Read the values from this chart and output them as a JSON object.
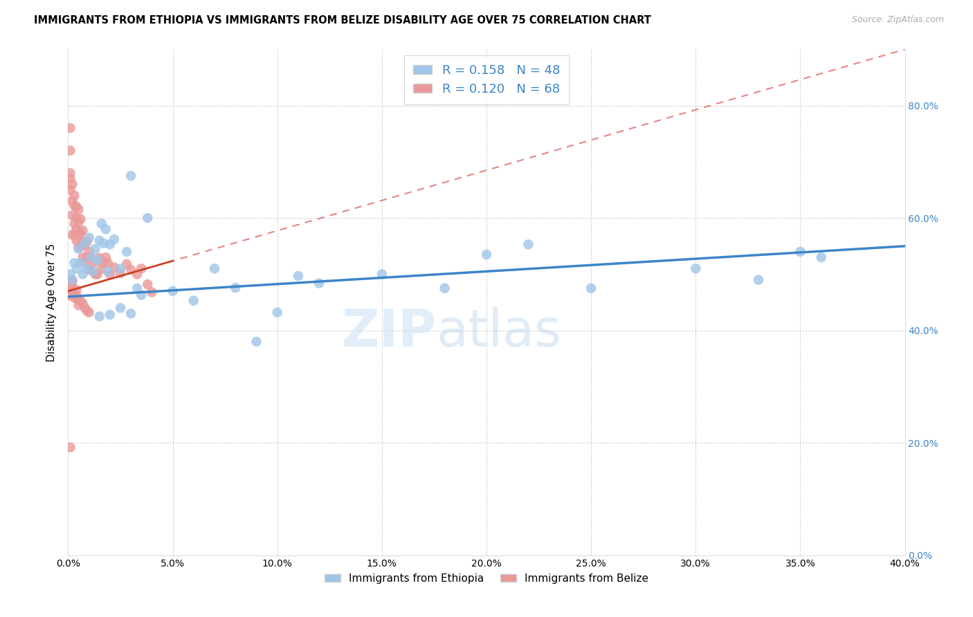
{
  "title": "IMMIGRANTS FROM ETHIOPIA VS IMMIGRANTS FROM BELIZE DISABILITY AGE OVER 75 CORRELATION CHART",
  "source": "Source: ZipAtlas.com",
  "ylabel": "Disability Age Over 75",
  "legend_ethiopia": "Immigrants from Ethiopia",
  "legend_belize": "Immigrants from Belize",
  "R_ethiopia": "0.158",
  "N_ethiopia": "48",
  "R_belize": "0.120",
  "N_belize": "68",
  "xlim": [
    0.0,
    0.4
  ],
  "ylim": [
    0.0,
    0.9
  ],
  "yticks": [
    0.0,
    0.2,
    0.4,
    0.6,
    0.8
  ],
  "xticks": [
    0.0,
    0.05,
    0.1,
    0.15,
    0.2,
    0.25,
    0.3,
    0.35,
    0.4
  ],
  "color_ethiopia": "#9fc5e8",
  "color_belize": "#ea9999",
  "color_ethiopia_line": "#3d85c8",
  "color_belize_solid": "#cc4125",
  "color_belize_dash": "#e06666",
  "watermark_zip": "ZIP",
  "watermark_atlas": "atlas",
  "eth_x": [
    0.001,
    0.002,
    0.003,
    0.004,
    0.005,
    0.006,
    0.007,
    0.008,
    0.009,
    0.01,
    0.011,
    0.012,
    0.013,
    0.014,
    0.015,
    0.016,
    0.017,
    0.018,
    0.019,
    0.02,
    0.022,
    0.025,
    0.028,
    0.03,
    0.033,
    0.035,
    0.038,
    0.05,
    0.06,
    0.07,
    0.08,
    0.09,
    0.1,
    0.11,
    0.12,
    0.15,
    0.18,
    0.2,
    0.22,
    0.25,
    0.3,
    0.33,
    0.35,
    0.36,
    0.015,
    0.02,
    0.025,
    0.03
  ],
  "eth_y": [
    0.5,
    0.49,
    0.52,
    0.51,
    0.545,
    0.52,
    0.5,
    0.555,
    0.51,
    0.565,
    0.53,
    0.505,
    0.545,
    0.525,
    0.56,
    0.59,
    0.555,
    0.58,
    0.505,
    0.553,
    0.562,
    0.51,
    0.54,
    0.675,
    0.475,
    0.463,
    0.6,
    0.47,
    0.453,
    0.51,
    0.476,
    0.38,
    0.432,
    0.497,
    0.484,
    0.5,
    0.475,
    0.535,
    0.553,
    0.475,
    0.51,
    0.49,
    0.54,
    0.53,
    0.425,
    0.428,
    0.44,
    0.43
  ],
  "bel_x": [
    0.001,
    0.001,
    0.001,
    0.001,
    0.002,
    0.002,
    0.002,
    0.002,
    0.003,
    0.003,
    0.003,
    0.003,
    0.004,
    0.004,
    0.004,
    0.004,
    0.005,
    0.005,
    0.005,
    0.005,
    0.006,
    0.006,
    0.006,
    0.007,
    0.007,
    0.007,
    0.008,
    0.008,
    0.009,
    0.009,
    0.01,
    0.01,
    0.011,
    0.012,
    0.013,
    0.014,
    0.015,
    0.016,
    0.017,
    0.018,
    0.019,
    0.02,
    0.022,
    0.025,
    0.028,
    0.03,
    0.033,
    0.035,
    0.038,
    0.04,
    0.001,
    0.001,
    0.001,
    0.002,
    0.002,
    0.003,
    0.003,
    0.004,
    0.004,
    0.005,
    0.005,
    0.006,
    0.007,
    0.008,
    0.009,
    0.01,
    0.001,
    0.001
  ],
  "bel_y": [
    0.76,
    0.72,
    0.68,
    0.65,
    0.66,
    0.63,
    0.605,
    0.57,
    0.64,
    0.622,
    0.59,
    0.572,
    0.62,
    0.6,
    0.58,
    0.56,
    0.615,
    0.593,
    0.57,
    0.548,
    0.598,
    0.574,
    0.55,
    0.578,
    0.558,
    0.53,
    0.552,
    0.522,
    0.558,
    0.53,
    0.54,
    0.508,
    0.53,
    0.52,
    0.5,
    0.5,
    0.529,
    0.51,
    0.52,
    0.53,
    0.52,
    0.5,
    0.512,
    0.502,
    0.518,
    0.508,
    0.5,
    0.51,
    0.482,
    0.468,
    0.49,
    0.475,
    0.462,
    0.488,
    0.478,
    0.468,
    0.458,
    0.472,
    0.462,
    0.455,
    0.445,
    0.452,
    0.448,
    0.44,
    0.435,
    0.432,
    0.192,
    0.67
  ]
}
